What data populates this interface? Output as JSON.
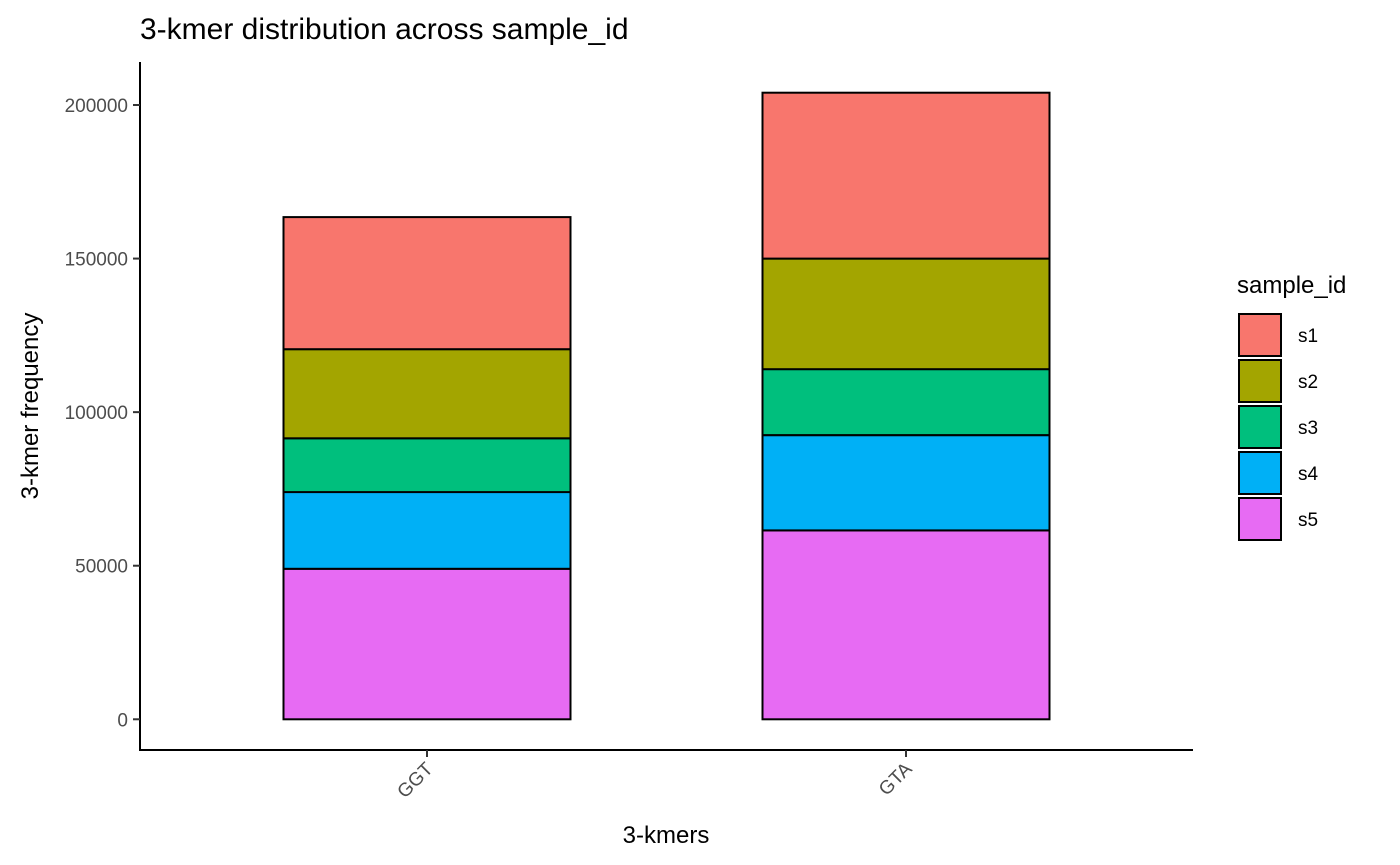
{
  "chart_data": {
    "type": "bar",
    "stacked": true,
    "title": "3-kmer distribution across sample_id",
    "xlabel": "3-kmers",
    "ylabel": "3-kmer frequency",
    "categories": [
      "GGT",
      "GTA"
    ],
    "series": [
      {
        "name": "s1",
        "color": "#F8766D",
        "values": [
          43000,
          54000
        ]
      },
      {
        "name": "s2",
        "color": "#A3A500",
        "values": [
          29000,
          36000
        ]
      },
      {
        "name": "s3",
        "color": "#00BF7D",
        "values": [
          17500,
          21500
        ]
      },
      {
        "name": "s4",
        "color": "#00B0F6",
        "values": [
          25000,
          31000
        ]
      },
      {
        "name": "s5",
        "color": "#E76BF3",
        "values": [
          49000,
          61500
        ]
      }
    ],
    "stack_order_bottom_to_top": [
      "s5",
      "s4",
      "s3",
      "s2",
      "s1"
    ],
    "ylim": [
      -10000,
      214000
    ],
    "yticks": [
      0,
      50000,
      100000,
      150000,
      200000
    ],
    "ytick_labels": [
      "0",
      "50000",
      "100000",
      "150000",
      "200000"
    ],
    "xtick_rotation": "45deg",
    "grid": false,
    "legend": {
      "title": "sample_id",
      "placement": "right",
      "entries": [
        "s1",
        "s2",
        "s3",
        "s4",
        "s5"
      ]
    }
  }
}
